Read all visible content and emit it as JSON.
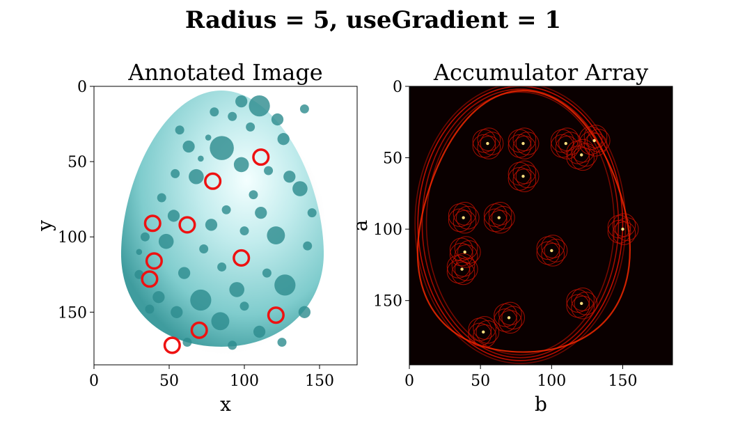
{
  "figure": {
    "suptitle": "Radius = 5, useGradient = 1"
  },
  "chart_data": [
    {
      "type": "image",
      "title": "Annotated Image",
      "xlabel": "x",
      "ylabel": "y",
      "xlim": [
        0,
        175
      ],
      "ylim": [
        185,
        0
      ],
      "xticks": [
        0,
        50,
        100,
        150
      ],
      "yticks": [
        0,
        50,
        100,
        150
      ],
      "image_description_colors": {
        "egg": "#6fc4c6",
        "spot": "#2c8b8d",
        "highlight": "#e8fbfb"
      },
      "circle_color": "#ee1111",
      "detected_circles": [
        {
          "x": 111,
          "y": 47
        },
        {
          "x": 79,
          "y": 63
        },
        {
          "x": 39,
          "y": 91
        },
        {
          "x": 62,
          "y": 92
        },
        {
          "x": 98,
          "y": 114
        },
        {
          "x": 40,
          "y": 116
        },
        {
          "x": 37,
          "y": 128
        },
        {
          "x": 121,
          "y": 152
        },
        {
          "x": 70,
          "y": 162
        },
        {
          "x": 52,
          "y": 172
        }
      ]
    },
    {
      "type": "heatmap",
      "title": "Accumulator Array",
      "xlabel": "b",
      "ylabel": "a",
      "xlim": [
        0,
        185
      ],
      "ylim": [
        195,
        0
      ],
      "xticks": [
        0,
        50,
        100,
        150
      ],
      "yticks": [
        0,
        50,
        100,
        150
      ],
      "colormap": "hot",
      "background_color": "#0a0000",
      "peaks": [
        {
          "b": 121,
          "a": 48
        },
        {
          "b": 80,
          "a": 63
        },
        {
          "b": 38,
          "a": 92
        },
        {
          "b": 63,
          "a": 92
        },
        {
          "b": 100,
          "a": 115
        },
        {
          "b": 39,
          "a": 116
        },
        {
          "b": 37,
          "a": 128
        },
        {
          "b": 121,
          "a": 152
        },
        {
          "b": 70,
          "a": 162
        },
        {
          "b": 52,
          "a": 172
        },
        {
          "b": 80,
          "a": 40
        },
        {
          "b": 110,
          "a": 40
        },
        {
          "b": 55,
          "a": 40
        },
        {
          "b": 130,
          "a": 38
        },
        {
          "b": 150,
          "a": 100
        }
      ]
    }
  ]
}
